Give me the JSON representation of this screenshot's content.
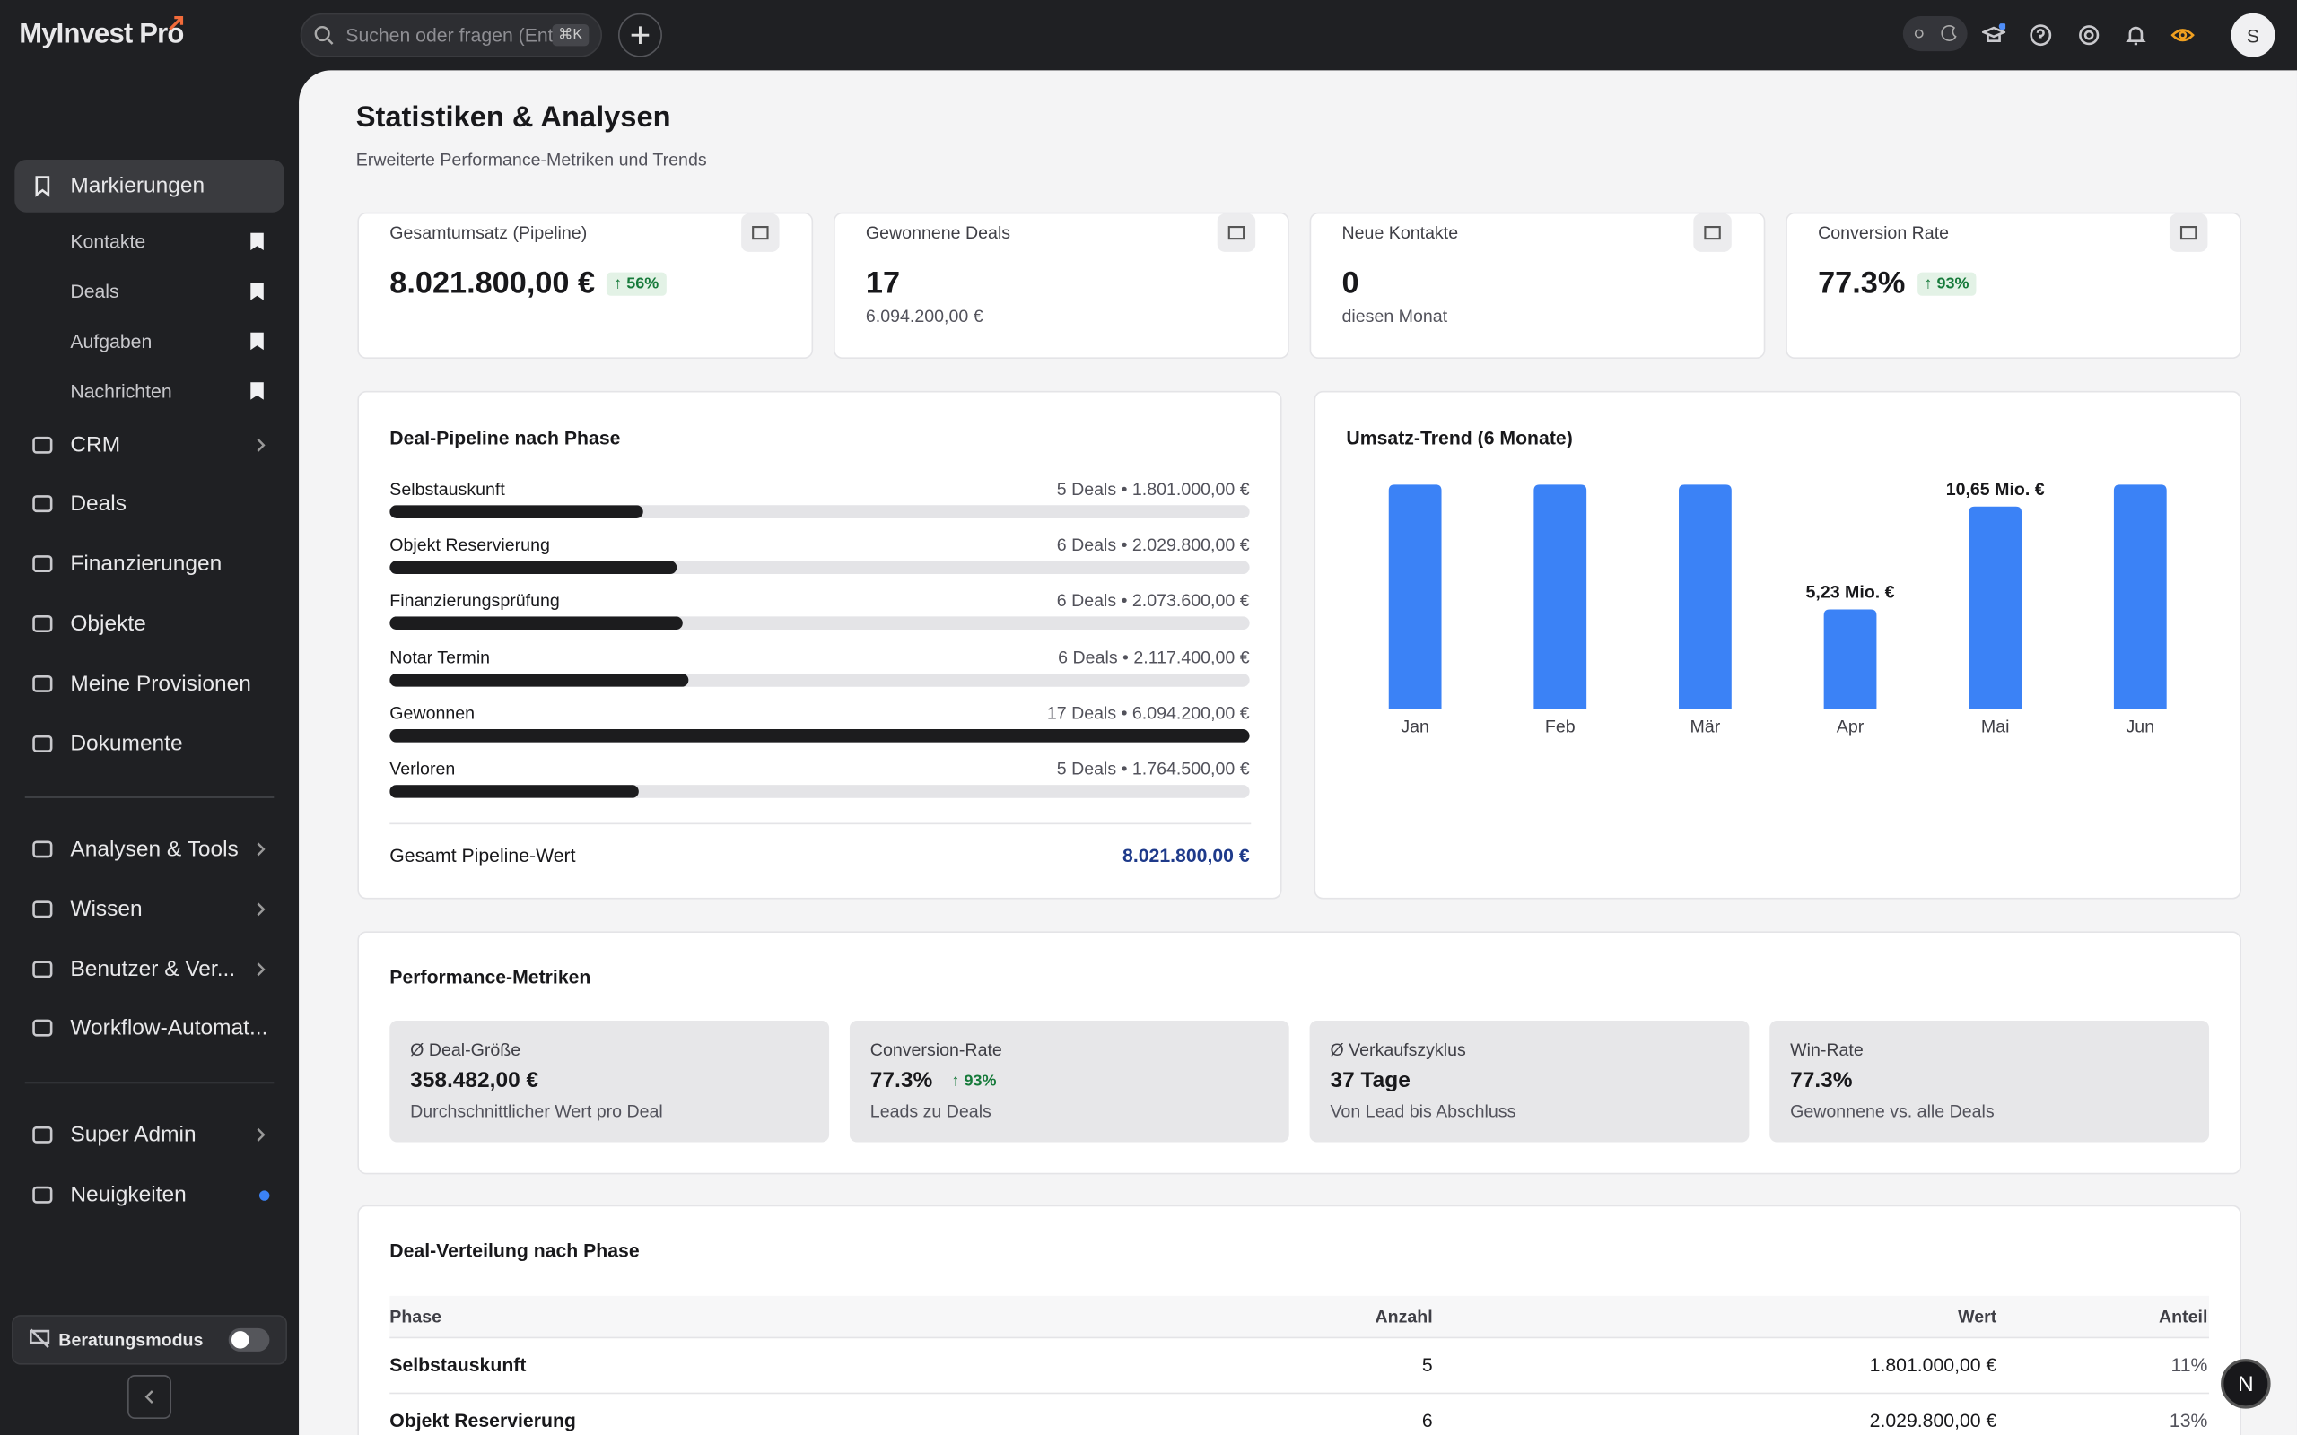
{
  "brand": "MyInvest Pro",
  "search": {
    "placeholder": "Suchen oder fragen (Ent",
    "shortcut": "⌘K"
  },
  "avatar": "S",
  "sidebar": {
    "pinned": {
      "label": "Markierungen",
      "items": [
        "Kontakte",
        "Deals",
        "Aufgaben",
        "Nachrichten"
      ]
    },
    "nav": [
      "CRM",
      "Deals",
      "Finanzierungen",
      "Objekte",
      "Meine Provisionen",
      "Dokumente"
    ],
    "nav2": [
      "Analysen & Tools",
      "Wissen",
      "Benutzer & Ver...",
      "Workflow-Automat..."
    ],
    "nav3": [
      "Super Admin",
      "Neuigkeiten"
    ],
    "mode": "Beratungsmodus"
  },
  "header": {
    "title": "Statistiken & Analysen",
    "subtitle": "Erweiterte Performance-Metriken und Trends"
  },
  "kpis": [
    {
      "label": "Gesamtumsatz (Pipeline)",
      "value": "8.021.800,00 €",
      "badge": "56%"
    },
    {
      "label": "Gewonnene Deals",
      "value": "17",
      "sub": "6.094.200,00 €"
    },
    {
      "label": "Neue Kontakte",
      "value": "0",
      "sub": "diesen Monat"
    },
    {
      "label": "Conversion Rate",
      "value": "77.3%",
      "badge": "93%"
    }
  ],
  "chart_data": [
    {
      "type": "progress",
      "title": "Deal-Pipeline nach Phase",
      "categories": [
        "Selbstauskunft",
        "Objekt Reservierung",
        "Finanzierungsprüfung",
        "Notar Termin",
        "Gewonnen",
        "Verloren"
      ],
      "values": [
        1801000,
        2029800,
        2073600,
        2117400,
        6094200,
        1764500
      ],
      "value_labels": [
        "5 Deals • 1.801.000,00 €",
        "6 Deals • 2.029.800,00 €",
        "6 Deals • 2.073.600,00 €",
        "6 Deals • 2.117.400,00 €",
        "17 Deals • 6.094.200,00 €",
        "5 Deals • 1.764.500,00 €"
      ],
      "xlim": [
        0,
        6094200
      ],
      "color": "#1c1c1e",
      "total_label": "Gesamt Pipeline-Wert",
      "total": "8.021.800,00 €"
    },
    {
      "type": "bar",
      "title": "Umsatz-Trend (6 Monate)",
      "categories": [
        "Jan",
        "Feb",
        "Mär",
        "Apr",
        "Mai",
        "Jun"
      ],
      "values": [
        11.8,
        11.8,
        11.8,
        5.23,
        10.65,
        11.8
      ],
      "value_labels": [
        null,
        null,
        null,
        "5,23 Mio. €",
        "10,65 Mio. €",
        null
      ],
      "ylim": [
        0,
        11.8
      ],
      "color": "#3b82f6"
    }
  ],
  "metrics": {
    "title": "Performance-Metriken",
    "items": [
      {
        "label": "Ø Deal-Größe",
        "value": "358.482,00 €",
        "sub": "Durchschnittlicher Wert pro Deal"
      },
      {
        "label": "Conversion-Rate",
        "value": "77.3%",
        "badge": "93%",
        "sub": "Leads zu Deals"
      },
      {
        "label": "Ø Verkaufszyklus",
        "value": "37 Tage",
        "sub": "Von Lead bis Abschluss"
      },
      {
        "label": "Win-Rate",
        "value": "77.3%",
        "sub": "Gewonnene vs. alle Deals"
      }
    ]
  },
  "table": {
    "title": "Deal-Verteilung nach Phase",
    "columns": [
      "Phase",
      "Anzahl",
      "Wert",
      "Anteil"
    ],
    "rows": [
      [
        "Selbstauskunft",
        "5",
        "1.801.000,00 €",
        "11%"
      ],
      [
        "Objekt Reservierung",
        "6",
        "2.029.800,00 €",
        "13%"
      ]
    ]
  }
}
